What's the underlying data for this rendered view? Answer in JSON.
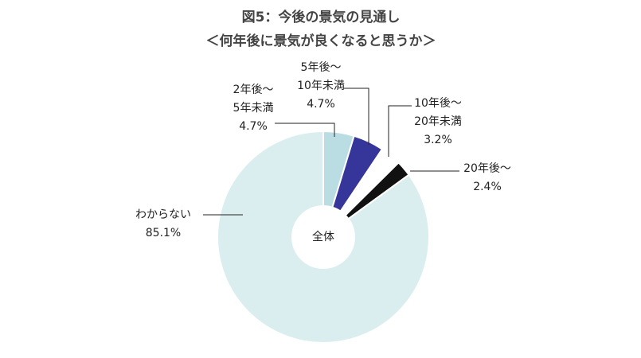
{
  "chart_data": {
    "type": "donut",
    "title": "図5：今後の景気の見通し",
    "subtitle": "＜何年後に景気が良くなると思うか＞",
    "center_label": "全体",
    "categories": [
      [
        "2年後〜",
        "5年未満"
      ],
      [
        "5年後〜",
        "10年未満"
      ],
      [
        "10年後〜",
        "20年未満"
      ],
      [
        "20年後〜"
      ],
      [
        "わからない"
      ]
    ],
    "values": [
      4.7,
      4.7,
      3.2,
      2.4,
      85.1
    ],
    "value_labels": [
      "4.7%",
      "4.7%",
      "3.2%",
      "2.4%",
      "85.1%"
    ],
    "colors": [
      "#b9dde2",
      "#36369a",
      "#ffffff",
      "#111111",
      "#daeef0"
    ]
  }
}
